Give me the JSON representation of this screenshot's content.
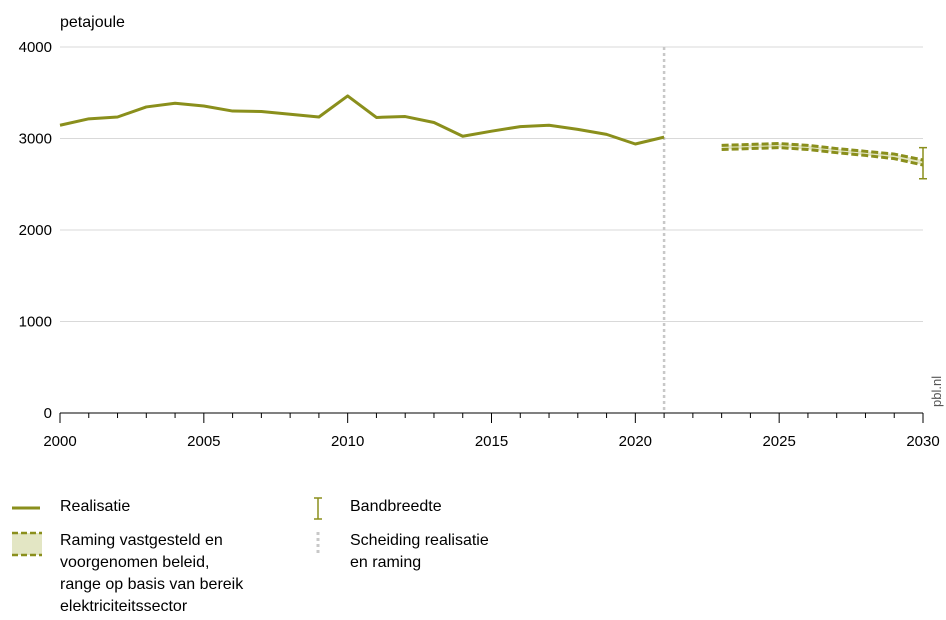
{
  "chart_data": {
    "type": "line",
    "ylabel": "petajoule",
    "ylim": [
      0,
      4000
    ],
    "xlim": [
      2000,
      2030
    ],
    "yticks": [
      "0",
      "1000",
      "2000",
      "3000",
      "4000"
    ],
    "xticks": [
      "2000",
      "2005",
      "2010",
      "2015",
      "2020",
      "2025",
      "2030"
    ],
    "grid": "horizontal",
    "credit": "pbl.nl",
    "colors": {
      "series": "#8a8f1c",
      "band_fill": "#e3e6c4",
      "separator": "#c8c8c8",
      "grid": "#d9d9d9"
    },
    "series": [
      {
        "name": "Realisatie",
        "x": [
          2000,
          2001,
          2002,
          2003,
          2004,
          2005,
          2006,
          2007,
          2008,
          2009,
          2010,
          2011,
          2012,
          2013,
          2014,
          2015,
          2016,
          2017,
          2018,
          2019,
          2020,
          2021
        ],
        "values": [
          3145,
          3215,
          3235,
          3345,
          3385,
          3355,
          3300,
          3295,
          3265,
          3235,
          3465,
          3230,
          3240,
          3175,
          3025,
          3080,
          3130,
          3145,
          3100,
          3045,
          2940,
          3015
        ]
      },
      {
        "name": "Raming vastgesteld en voorgenomen beleid, range op basis van bereik elektriciteitssector",
        "x": [
          2023,
          2024,
          2025,
          2026,
          2027,
          2028,
          2029,
          2030
        ],
        "upper": [
          2925,
          2935,
          2945,
          2925,
          2890,
          2860,
          2830,
          2765
        ],
        "lower": [
          2880,
          2890,
          2900,
          2880,
          2845,
          2815,
          2780,
          2710
        ]
      }
    ],
    "bandwidth": {
      "x": 2030,
      "high": 2900,
      "low": 2560
    },
    "separator_x": 2021,
    "legend": [
      {
        "key": "realisatie",
        "label": "Realisatie"
      },
      {
        "key": "raming",
        "label": "Raming vastgesteld en\nvoorgenomen beleid,\nrange op basis van bereik\nelektriciteitssector"
      },
      {
        "key": "bandbreedte",
        "label": "Bandbreedte"
      },
      {
        "key": "scheiding",
        "label": "Scheiding realisatie\nen raming"
      }
    ]
  }
}
